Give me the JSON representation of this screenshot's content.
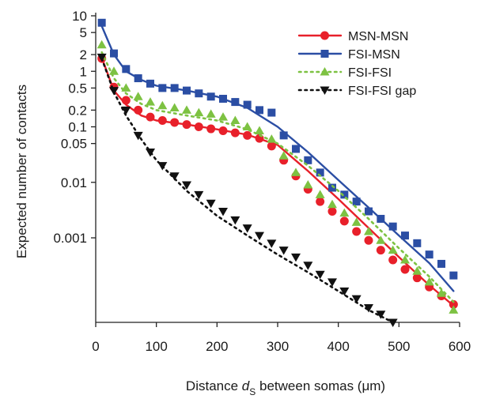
{
  "chart_data": {
    "type": "line",
    "title": "",
    "xlabel": {
      "before": "Distance ",
      "var": "d",
      "sub": "S",
      "after": " between somas (μm)"
    },
    "ylabel": "Expected number of contacts",
    "xlim": [
      0,
      600
    ],
    "ylim": [
      3e-05,
      10
    ],
    "yscale": "log",
    "grid": false,
    "legend_position": "top-right",
    "x_ticks": [
      0,
      100,
      200,
      300,
      400,
      500,
      600
    ],
    "x_tick_labels": [
      "0",
      "100",
      "200",
      "300",
      "400",
      "500",
      "600"
    ],
    "y_ticks": [
      10,
      5,
      2,
      1,
      0.5,
      0.2,
      0.1,
      0.05,
      0.01,
      0.001
    ],
    "y_tick_labels": [
      "10",
      "5",
      "2",
      "1",
      "0.5",
      "0.2",
      "0.1",
      "0.05",
      "0.01",
      "0.001"
    ],
    "series": [
      {
        "name": "MSN-MSN",
        "color": "#e8202a",
        "marker": "circle",
        "line_style": "solid",
        "points": {
          "x": [
            10,
            30,
            50,
            70,
            90,
            110,
            130,
            150,
            170,
            190,
            210,
            230,
            250,
            270,
            290,
            310,
            330,
            350,
            370,
            390,
            410,
            430,
            450,
            470,
            490,
            510,
            530,
            550,
            570,
            590
          ],
          "y": [
            1.7,
            0.52,
            0.3,
            0.2,
            0.15,
            0.13,
            0.12,
            0.11,
            0.1,
            0.092,
            0.085,
            0.078,
            0.07,
            0.062,
            0.045,
            0.025,
            0.013,
            0.0075,
            0.0045,
            0.003,
            0.002,
            0.0013,
            0.0009,
            0.0006,
            0.0004,
            0.00027,
            0.00019,
            0.00013,
            9e-05,
            6.3e-05
          ]
        },
        "fit": {
          "x": [
            10,
            30,
            50,
            75,
            100,
            150,
            200,
            250,
            300,
            350,
            400,
            450,
            500,
            550,
            590
          ],
          "y": [
            1.75,
            0.45,
            0.25,
            0.16,
            0.13,
            0.11,
            0.09,
            0.072,
            0.047,
            0.016,
            0.005,
            0.0015,
            0.00045,
            0.00014,
            6e-05
          ]
        }
      },
      {
        "name": "FSI-MSN",
        "color": "#2b4ea4",
        "marker": "square",
        "line_style": "solid",
        "points": {
          "x": [
            10,
            30,
            50,
            70,
            90,
            110,
            130,
            150,
            170,
            190,
            210,
            230,
            250,
            270,
            290,
            310,
            330,
            350,
            370,
            390,
            410,
            430,
            450,
            470,
            490,
            510,
            530,
            550,
            570,
            590
          ],
          "y": [
            7.5,
            2.1,
            1.1,
            0.75,
            0.6,
            0.5,
            0.5,
            0.45,
            0.4,
            0.35,
            0.32,
            0.28,
            0.25,
            0.2,
            0.18,
            0.07,
            0.04,
            0.025,
            0.015,
            0.008,
            0.006,
            0.0045,
            0.003,
            0.0022,
            0.0016,
            0.0011,
            0.0008,
            0.0005,
            0.00034,
            0.00021
          ]
        },
        "fit": {
          "x": [
            10,
            30,
            50,
            75,
            100,
            150,
            200,
            250,
            300,
            350,
            400,
            450,
            500,
            550,
            590
          ],
          "y": [
            6.5,
            2.0,
            1.0,
            0.7,
            0.55,
            0.45,
            0.35,
            0.22,
            0.1,
            0.035,
            0.011,
            0.0035,
            0.0011,
            0.00035,
            0.00011
          ]
        }
      },
      {
        "name": "FSI-FSI",
        "color": "#7dc242",
        "marker": "triangle-up",
        "line_style": "dotted",
        "points": {
          "x": [
            10,
            30,
            50,
            70,
            90,
            110,
            130,
            150,
            170,
            190,
            210,
            230,
            250,
            270,
            290,
            310,
            330,
            350,
            370,
            390,
            410,
            430,
            450,
            470,
            490,
            510,
            530,
            550,
            570,
            590
          ],
          "y": [
            3.0,
            1.0,
            0.5,
            0.35,
            0.28,
            0.24,
            0.22,
            0.2,
            0.18,
            0.17,
            0.15,
            0.13,
            0.1,
            0.085,
            0.06,
            0.03,
            0.015,
            0.009,
            0.006,
            0.004,
            0.0028,
            0.0019,
            0.0013,
            0.0009,
            0.0006,
            0.0004,
            0.00025,
            0.00016,
            0.0001,
            5e-05
          ]
        },
        "fit": {
          "x": [
            10,
            30,
            50,
            75,
            100,
            150,
            200,
            250,
            300,
            350,
            400,
            450,
            500,
            550,
            590
          ],
          "y": [
            2.2,
            0.75,
            0.4,
            0.26,
            0.2,
            0.16,
            0.13,
            0.09,
            0.05,
            0.02,
            0.007,
            0.0022,
            0.00065,
            0.0002,
            7e-05
          ]
        }
      },
      {
        "name": "FSI-FSI gap",
        "color": "#111111",
        "marker": "triangle-down",
        "line_style": "dotted",
        "points": {
          "x": [
            10,
            30,
            50,
            70,
            90,
            110,
            130,
            150,
            170,
            190,
            210,
            230,
            250,
            270,
            290,
            310,
            330,
            350,
            370,
            390,
            410,
            430,
            450,
            470,
            490
          ],
          "y": [
            1.8,
            0.45,
            0.2,
            0.07,
            0.035,
            0.02,
            0.013,
            0.009,
            0.006,
            0.0042,
            0.003,
            0.0021,
            0.0015,
            0.0011,
            0.0008,
            0.0006,
            0.00045,
            0.00032,
            0.00022,
            0.00016,
            0.00011,
            8e-05,
            5.5e-05,
            4.2e-05,
            3e-05
          ]
        },
        "fit": {
          "x": [
            10,
            30,
            50,
            75,
            100,
            150,
            200,
            250,
            300,
            350,
            400,
            450,
            490
          ],
          "y": [
            1.7,
            0.42,
            0.16,
            0.06,
            0.025,
            0.007,
            0.0025,
            0.0011,
            0.0005,
            0.00024,
            0.00011,
            5e-05,
            3e-05
          ]
        }
      }
    ]
  }
}
